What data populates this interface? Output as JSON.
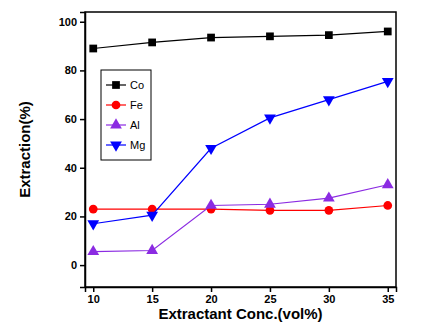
{
  "chart_data": {
    "type": "line",
    "x_label": "Extractant Conc.(vol%)",
    "y_label": "Extraction(%)",
    "x": [
      10,
      15,
      20,
      25,
      30,
      35
    ],
    "series": [
      {
        "name": "Co",
        "color": "#000000",
        "marker": "square",
        "values": [
          89,
          91.5,
          93.5,
          94,
          94.5,
          96
        ]
      },
      {
        "name": "Fe",
        "color": "#ff0000",
        "marker": "circle",
        "values": [
          23,
          23,
          23,
          22.5,
          22.5,
          24.5
        ]
      },
      {
        "name": "Al",
        "color": "#8b2be2",
        "marker": "triangle-up",
        "values": [
          5.5,
          6,
          24.5,
          25,
          27.5,
          33
        ]
      },
      {
        "name": "Mg",
        "color": "#0000ff",
        "marker": "triangle-down",
        "values": [
          17,
          20.5,
          48,
          60.5,
          68,
          75.5
        ]
      }
    ],
    "xlim": [
      9.3,
      35.7
    ],
    "xticks": [
      10,
      15,
      20,
      25,
      30,
      35
    ],
    "ylim": [
      -9,
      104
    ],
    "yticks": [
      0,
      20,
      40,
      60,
      80,
      100
    ],
    "legend": "upper-left",
    "grid": false
  }
}
